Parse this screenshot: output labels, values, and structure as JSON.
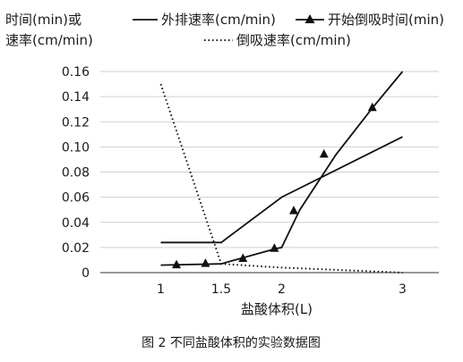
{
  "chart_data": {
    "type": "line",
    "ylabel_line1": "时间(min)或",
    "ylabel_line2": "速率(cm/min)",
    "xlabel": "盐酸体积(L)",
    "caption": "图 2   不同盐酸体积的实验数据图",
    "xlim": [
      0.5,
      3.3
    ],
    "ylim": [
      0,
      0.16
    ],
    "x_ticks": [
      "1",
      "1.5",
      "2",
      "3"
    ],
    "y_ticks": [
      "0",
      "0.02",
      "0.04",
      "0.06",
      "0.08",
      "0.10",
      "0.12",
      "0.14",
      "0.16"
    ],
    "series": [
      {
        "name": "外排速率(cm/min)",
        "style": "solid",
        "points": [
          [
            1.0,
            0.024
          ],
          [
            1.5,
            0.024
          ],
          [
            2.0,
            0.06
          ],
          [
            3.0,
            0.108
          ]
        ]
      },
      {
        "name": "开始倒吸时间(min)",
        "style": "triangle",
        "points": [
          [
            1.0,
            0.006
          ],
          [
            1.5,
            0.007
          ],
          [
            1.65,
            0.011
          ],
          [
            1.95,
            0.019
          ],
          [
            2.0,
            0.02
          ],
          [
            2.15,
            0.05
          ],
          [
            2.45,
            0.094
          ],
          [
            2.75,
            0.131
          ],
          [
            3.0,
            0.16
          ]
        ],
        "markers": [
          [
            1.13,
            0.006
          ],
          [
            1.37,
            0.007
          ],
          [
            1.68,
            0.011
          ],
          [
            1.94,
            0.019
          ],
          [
            2.1,
            0.049
          ],
          [
            2.35,
            0.094
          ],
          [
            2.75,
            0.131
          ]
        ]
      },
      {
        "name": "倒吸速率(cm/min)",
        "style": "dotted",
        "points": [
          [
            1.0,
            0.15
          ],
          [
            1.5,
            0.007
          ],
          [
            2.0,
            0.004
          ],
          [
            3.0,
            0.0
          ]
        ]
      }
    ],
    "grid": "horizontal"
  }
}
